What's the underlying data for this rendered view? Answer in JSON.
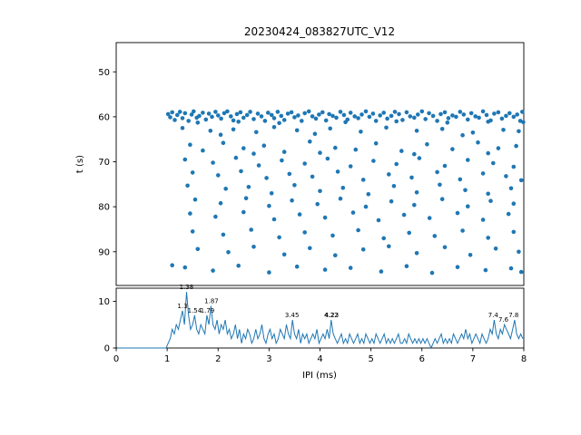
{
  "title": "20230424_083827UTC_V12",
  "colors": {
    "series": "#1f77b4",
    "axis": "#000000",
    "background": "#ffffff"
  },
  "chart_data": [
    {
      "type": "scatter",
      "title": "20230424_083827UTC_V12",
      "xlabel": "IPI (ms)",
      "ylabel": "t (s)",
      "xlim": [
        0,
        8
      ],
      "ylim": [
        43.5,
        97.5
      ],
      "y_inverted": true,
      "yticks": [
        50,
        60,
        70,
        80,
        90
      ],
      "points": [
        [
          1.02,
          59.4
        ],
        [
          1.06,
          60.1
        ],
        [
          1.1,
          59.0
        ],
        [
          1.15,
          60.7
        ],
        [
          1.2,
          59.6
        ],
        [
          1.25,
          58.9
        ],
        [
          1.3,
          60.3
        ],
        [
          1.35,
          59.2
        ],
        [
          1.42,
          60.9
        ],
        [
          1.48,
          59.5
        ],
        [
          1.52,
          58.8
        ],
        [
          1.58,
          60.2
        ],
        [
          1.63,
          59.8
        ],
        [
          1.7,
          59.1
        ],
        [
          1.76,
          60.6
        ],
        [
          1.82,
          59.3
        ],
        [
          1.88,
          60.0
        ],
        [
          1.95,
          58.9
        ],
        [
          2.0,
          59.7
        ],
        [
          2.06,
          60.4
        ],
        [
          2.12,
          59.2
        ],
        [
          2.18,
          58.8
        ],
        [
          2.25,
          59.9
        ],
        [
          2.3,
          60.8
        ],
        [
          2.37,
          59.4
        ],
        [
          2.44,
          59.0
        ],
        [
          2.5,
          60.2
        ],
        [
          2.57,
          59.6
        ],
        [
          2.63,
          58.9
        ],
        [
          2.7,
          60.5
        ],
        [
          2.78,
          59.3
        ],
        [
          2.85,
          59.9
        ],
        [
          2.92,
          60.9
        ],
        [
          2.98,
          59.1
        ],
        [
          3.05,
          59.6
        ],
        [
          3.1,
          60.3
        ],
        [
          3.17,
          58.9
        ],
        [
          3.24,
          59.8
        ],
        [
          3.3,
          60.7
        ],
        [
          3.37,
          59.3
        ],
        [
          3.44,
          59.0
        ],
        [
          3.5,
          60.1
        ],
        [
          3.57,
          59.7
        ],
        [
          3.64,
          60.9
        ],
        [
          3.7,
          59.2
        ],
        [
          3.78,
          58.8
        ],
        [
          3.85,
          59.9
        ],
        [
          3.92,
          60.4
        ],
        [
          3.98,
          59.5
        ],
        [
          4.05,
          59.0
        ],
        [
          4.12,
          60.8
        ],
        [
          4.18,
          59.4
        ],
        [
          4.25,
          59.8
        ],
        [
          4.32,
          60.2
        ],
        [
          4.4,
          58.9
        ],
        [
          4.47,
          59.6
        ],
        [
          4.54,
          60.6
        ],
        [
          4.6,
          59.1
        ],
        [
          4.68,
          59.9
        ],
        [
          4.75,
          60.3
        ],
        [
          4.82,
          59.5
        ],
        [
          4.9,
          58.8
        ],
        [
          4.97,
          60.0
        ],
        [
          5.04,
          59.3
        ],
        [
          5.1,
          60.9
        ],
        [
          5.18,
          59.7
        ],
        [
          5.25,
          59.1
        ],
        [
          5.32,
          60.4
        ],
        [
          5.4,
          59.8
        ],
        [
          5.47,
          58.9
        ],
        [
          5.55,
          59.4
        ],
        [
          5.62,
          60.7
        ],
        [
          5.7,
          59.0
        ],
        [
          5.77,
          59.9
        ],
        [
          5.85,
          60.2
        ],
        [
          5.92,
          59.5
        ],
        [
          6.0,
          58.8
        ],
        [
          6.07,
          60.5
        ],
        [
          6.14,
          59.2
        ],
        [
          6.22,
          59.8
        ],
        [
          6.3,
          60.9
        ],
        [
          6.37,
          59.4
        ],
        [
          6.45,
          59.0
        ],
        [
          6.52,
          60.3
        ],
        [
          6.6,
          59.7
        ],
        [
          6.67,
          60.0
        ],
        [
          6.75,
          58.9
        ],
        [
          6.82,
          59.5
        ],
        [
          6.9,
          60.6
        ],
        [
          6.97,
          59.2
        ],
        [
          7.05,
          59.9
        ],
        [
          7.12,
          60.2
        ],
        [
          7.2,
          58.8
        ],
        [
          7.27,
          59.6
        ],
        [
          7.35,
          60.8
        ],
        [
          7.42,
          59.3
        ],
        [
          7.5,
          59.0
        ],
        [
          7.57,
          60.4
        ],
        [
          7.65,
          59.8
        ],
        [
          7.72,
          59.2
        ],
        [
          7.8,
          60.0
        ],
        [
          7.87,
          59.5
        ],
        [
          7.93,
          60.9
        ],
        [
          7.97,
          58.9
        ],
        [
          7.99,
          61.2
        ],
        [
          1.6,
          61.3
        ],
        [
          2.4,
          61.1
        ],
        [
          3.2,
          61.4
        ],
        [
          4.5,
          61.2
        ],
        [
          5.5,
          61.0
        ],
        [
          6.5,
          61.3
        ],
        [
          7.3,
          61.1
        ],
        [
          1.3,
          62.5
        ],
        [
          1.85,
          63.1
        ],
        [
          2.3,
          62.8
        ],
        [
          2.75,
          63.4
        ],
        [
          3.1,
          62.3
        ],
        [
          3.55,
          63.0
        ],
        [
          4.2,
          62.6
        ],
        [
          4.8,
          63.3
        ],
        [
          5.3,
          62.4
        ],
        [
          5.9,
          63.1
        ],
        [
          6.4,
          62.7
        ],
        [
          7.0,
          63.5
        ],
        [
          7.6,
          62.9
        ],
        [
          7.9,
          63.2
        ],
        [
          2.05,
          64.0
        ],
        [
          3.9,
          63.8
        ],
        [
          6.8,
          64.1
        ],
        [
          1.45,
          66.2
        ],
        [
          1.7,
          67.5
        ],
        [
          2.1,
          65.8
        ],
        [
          2.5,
          67.0
        ],
        [
          2.9,
          66.4
        ],
        [
          3.3,
          67.8
        ],
        [
          3.8,
          65.5
        ],
        [
          4.3,
          66.9
        ],
        [
          4.7,
          67.3
        ],
        [
          5.1,
          65.9
        ],
        [
          5.6,
          67.6
        ],
        [
          6.1,
          66.1
        ],
        [
          6.6,
          67.2
        ],
        [
          7.1,
          65.7
        ],
        [
          7.5,
          67.0
        ],
        [
          7.85,
          66.5
        ],
        [
          2.7,
          68.2
        ],
        [
          4.0,
          68.0
        ],
        [
          5.85,
          68.3
        ],
        [
          7.3,
          68.1
        ],
        [
          1.35,
          69.5
        ],
        [
          1.9,
          70.2
        ],
        [
          2.35,
          69.1
        ],
        [
          2.8,
          70.8
        ],
        [
          3.25,
          69.7
        ],
        [
          3.7,
          70.4
        ],
        [
          4.15,
          69.3
        ],
        [
          4.6,
          71.0
        ],
        [
          5.05,
          69.8
        ],
        [
          5.5,
          70.5
        ],
        [
          5.95,
          69.2
        ],
        [
          6.45,
          70.9
        ],
        [
          6.9,
          69.6
        ],
        [
          7.4,
          70.3
        ],
        [
          7.8,
          71.1
        ],
        [
          1.5,
          72.4
        ],
        [
          2.0,
          73.0
        ],
        [
          2.45,
          72.1
        ],
        [
          2.95,
          73.6
        ],
        [
          3.4,
          72.7
        ],
        [
          3.85,
          73.3
        ],
        [
          4.35,
          72.2
        ],
        [
          4.85,
          74.0
        ],
        [
          5.35,
          72.8
        ],
        [
          5.8,
          73.5
        ],
        [
          6.3,
          72.3
        ],
        [
          6.75,
          73.9
        ],
        [
          7.2,
          72.6
        ],
        [
          7.65,
          73.2
        ],
        [
          7.95,
          74.1
        ],
        [
          1.4,
          75.3
        ],
        [
          2.15,
          76.0
        ],
        [
          2.6,
          75.6
        ],
        [
          3.05,
          77.0
        ],
        [
          3.5,
          75.2
        ],
        [
          4.0,
          76.5
        ],
        [
          4.45,
          75.8
        ],
        [
          4.95,
          77.2
        ],
        [
          5.45,
          75.4
        ],
        [
          5.9,
          76.8
        ],
        [
          6.35,
          75.1
        ],
        [
          6.85,
          76.3
        ],
        [
          7.3,
          77.1
        ],
        [
          7.75,
          75.9
        ],
        [
          1.55,
          78.4
        ],
        [
          2.05,
          79.2
        ],
        [
          2.55,
          78.1
        ],
        [
          3.0,
          79.8
        ],
        [
          3.45,
          78.6
        ],
        [
          3.95,
          79.4
        ],
        [
          4.4,
          78.2
        ],
        [
          4.9,
          80.0
        ],
        [
          5.4,
          78.8
        ],
        [
          5.85,
          79.6
        ],
        [
          6.4,
          78.3
        ],
        [
          6.9,
          79.9
        ],
        [
          7.35,
          78.7
        ],
        [
          7.8,
          79.3
        ],
        [
          1.45,
          81.5
        ],
        [
          1.95,
          82.2
        ],
        [
          2.5,
          81.2
        ],
        [
          3.1,
          82.8
        ],
        [
          3.6,
          81.7
        ],
        [
          4.1,
          82.4
        ],
        [
          4.65,
          81.3
        ],
        [
          5.15,
          83.0
        ],
        [
          5.65,
          81.8
        ],
        [
          6.15,
          82.5
        ],
        [
          6.7,
          81.4
        ],
        [
          7.2,
          82.9
        ],
        [
          7.7,
          81.6
        ],
        [
          1.5,
          85.5
        ],
        [
          2.1,
          86.2
        ],
        [
          2.65,
          85.1
        ],
        [
          3.2,
          86.8
        ],
        [
          3.7,
          85.7
        ],
        [
          4.25,
          86.4
        ],
        [
          4.75,
          85.2
        ],
        [
          5.25,
          87.0
        ],
        [
          5.75,
          85.8
        ],
        [
          6.25,
          86.5
        ],
        [
          6.8,
          85.3
        ],
        [
          7.3,
          86.9
        ],
        [
          7.8,
          85.6
        ],
        [
          1.6,
          89.4
        ],
        [
          2.2,
          90.1
        ],
        [
          2.7,
          88.9
        ],
        [
          3.3,
          90.6
        ],
        [
          3.8,
          89.2
        ],
        [
          4.3,
          90.8
        ],
        [
          4.85,
          89.5
        ],
        [
          5.35,
          88.8
        ],
        [
          5.9,
          90.3
        ],
        [
          6.45,
          89.0
        ],
        [
          6.95,
          90.7
        ],
        [
          7.45,
          89.3
        ],
        [
          7.9,
          90.0
        ],
        [
          1.35,
          93.5
        ],
        [
          1.9,
          94.2
        ],
        [
          2.4,
          93.1
        ],
        [
          3.0,
          94.6
        ],
        [
          3.55,
          93.3
        ],
        [
          4.1,
          94.0
        ],
        [
          4.6,
          93.6
        ],
        [
          5.2,
          94.4
        ],
        [
          5.7,
          93.2
        ],
        [
          6.2,
          94.7
        ],
        [
          6.7,
          93.4
        ],
        [
          7.25,
          94.1
        ],
        [
          7.75,
          93.7
        ],
        [
          1.1,
          93.0
        ],
        [
          7.95,
          94.5
        ]
      ]
    },
    {
      "type": "line",
      "xlabel": "IPI (ms)",
      "xlim": [
        0,
        8
      ],
      "ylim": [
        0,
        12.8
      ],
      "yticks": [
        0,
        10
      ],
      "xticks": [
        0,
        1,
        2,
        3,
        4,
        5,
        6,
        7,
        8
      ],
      "x_start": 0.02,
      "bin_width": 0.04,
      "values": [
        0,
        0,
        0,
        0,
        0,
        0,
        0,
        0,
        0,
        0,
        0,
        0,
        0,
        0,
        0,
        0,
        0,
        0,
        0,
        0,
        0,
        0,
        0,
        0,
        0,
        1,
        2,
        4,
        3,
        5,
        4,
        6,
        8,
        5,
        12,
        7,
        4,
        5,
        7,
        4,
        3,
        5,
        4,
        3,
        7,
        5,
        9,
        5,
        4,
        6,
        3,
        5,
        4,
        6,
        3,
        4,
        2,
        3,
        5,
        2,
        4,
        1,
        3,
        2,
        4,
        3,
        1,
        2,
        4,
        2,
        3,
        5,
        2,
        1,
        3,
        4,
        2,
        3,
        1,
        2,
        4,
        3,
        2,
        5,
        3,
        2,
        6,
        3,
        2,
        4,
        1,
        3,
        2,
        3,
        1,
        2,
        3,
        2,
        4,
        1,
        2,
        3,
        2,
        4,
        2,
        6,
        3,
        2,
        1,
        2,
        3,
        1,
        2,
        1,
        3,
        2,
        1,
        2,
        3,
        1,
        2,
        1,
        3,
        2,
        1,
        2,
        1,
        3,
        2,
        1,
        2,
        3,
        1,
        2,
        1,
        2,
        1,
        2,
        3,
        1,
        1,
        2,
        1,
        3,
        2,
        1,
        2,
        1,
        2,
        1,
        2,
        1,
        2,
        1,
        0,
        1,
        2,
        1,
        2,
        3,
        1,
        2,
        1,
        2,
        1,
        3,
        2,
        1,
        2,
        3,
        2,
        4,
        2,
        3,
        1,
        2,
        3,
        2,
        1,
        3,
        2,
        1,
        2,
        4,
        3,
        6,
        3,
        2,
        4,
        3,
        5,
        4,
        3,
        2,
        4,
        6,
        3,
        2,
        3,
        2
      ],
      "annotations": [
        {
          "x": 1.38,
          "y": 12.0,
          "label": "1.38"
        },
        {
          "x": 1.3,
          "y": 8.0,
          "label": "1.3"
        },
        {
          "x": 1.54,
          "y": 7.0,
          "label": "1.54"
        },
        {
          "x": 1.79,
          "y": 7.0,
          "label": "1.79"
        },
        {
          "x": 1.87,
          "y": 9.0,
          "label": "1.87"
        },
        {
          "x": 3.45,
          "y": 6.0,
          "label": "3.45"
        },
        {
          "x": 4.22,
          "y": 6.0,
          "label": "4.22"
        },
        {
          "x": 4.23,
          "y": 6.0,
          "label": "4.23"
        },
        {
          "x": 7.4,
          "y": 6.0,
          "label": "7.4"
        },
        {
          "x": 7.6,
          "y": 5.0,
          "label": "7.6"
        },
        {
          "x": 7.8,
          "y": 6.0,
          "label": "7.8"
        }
      ]
    }
  ]
}
